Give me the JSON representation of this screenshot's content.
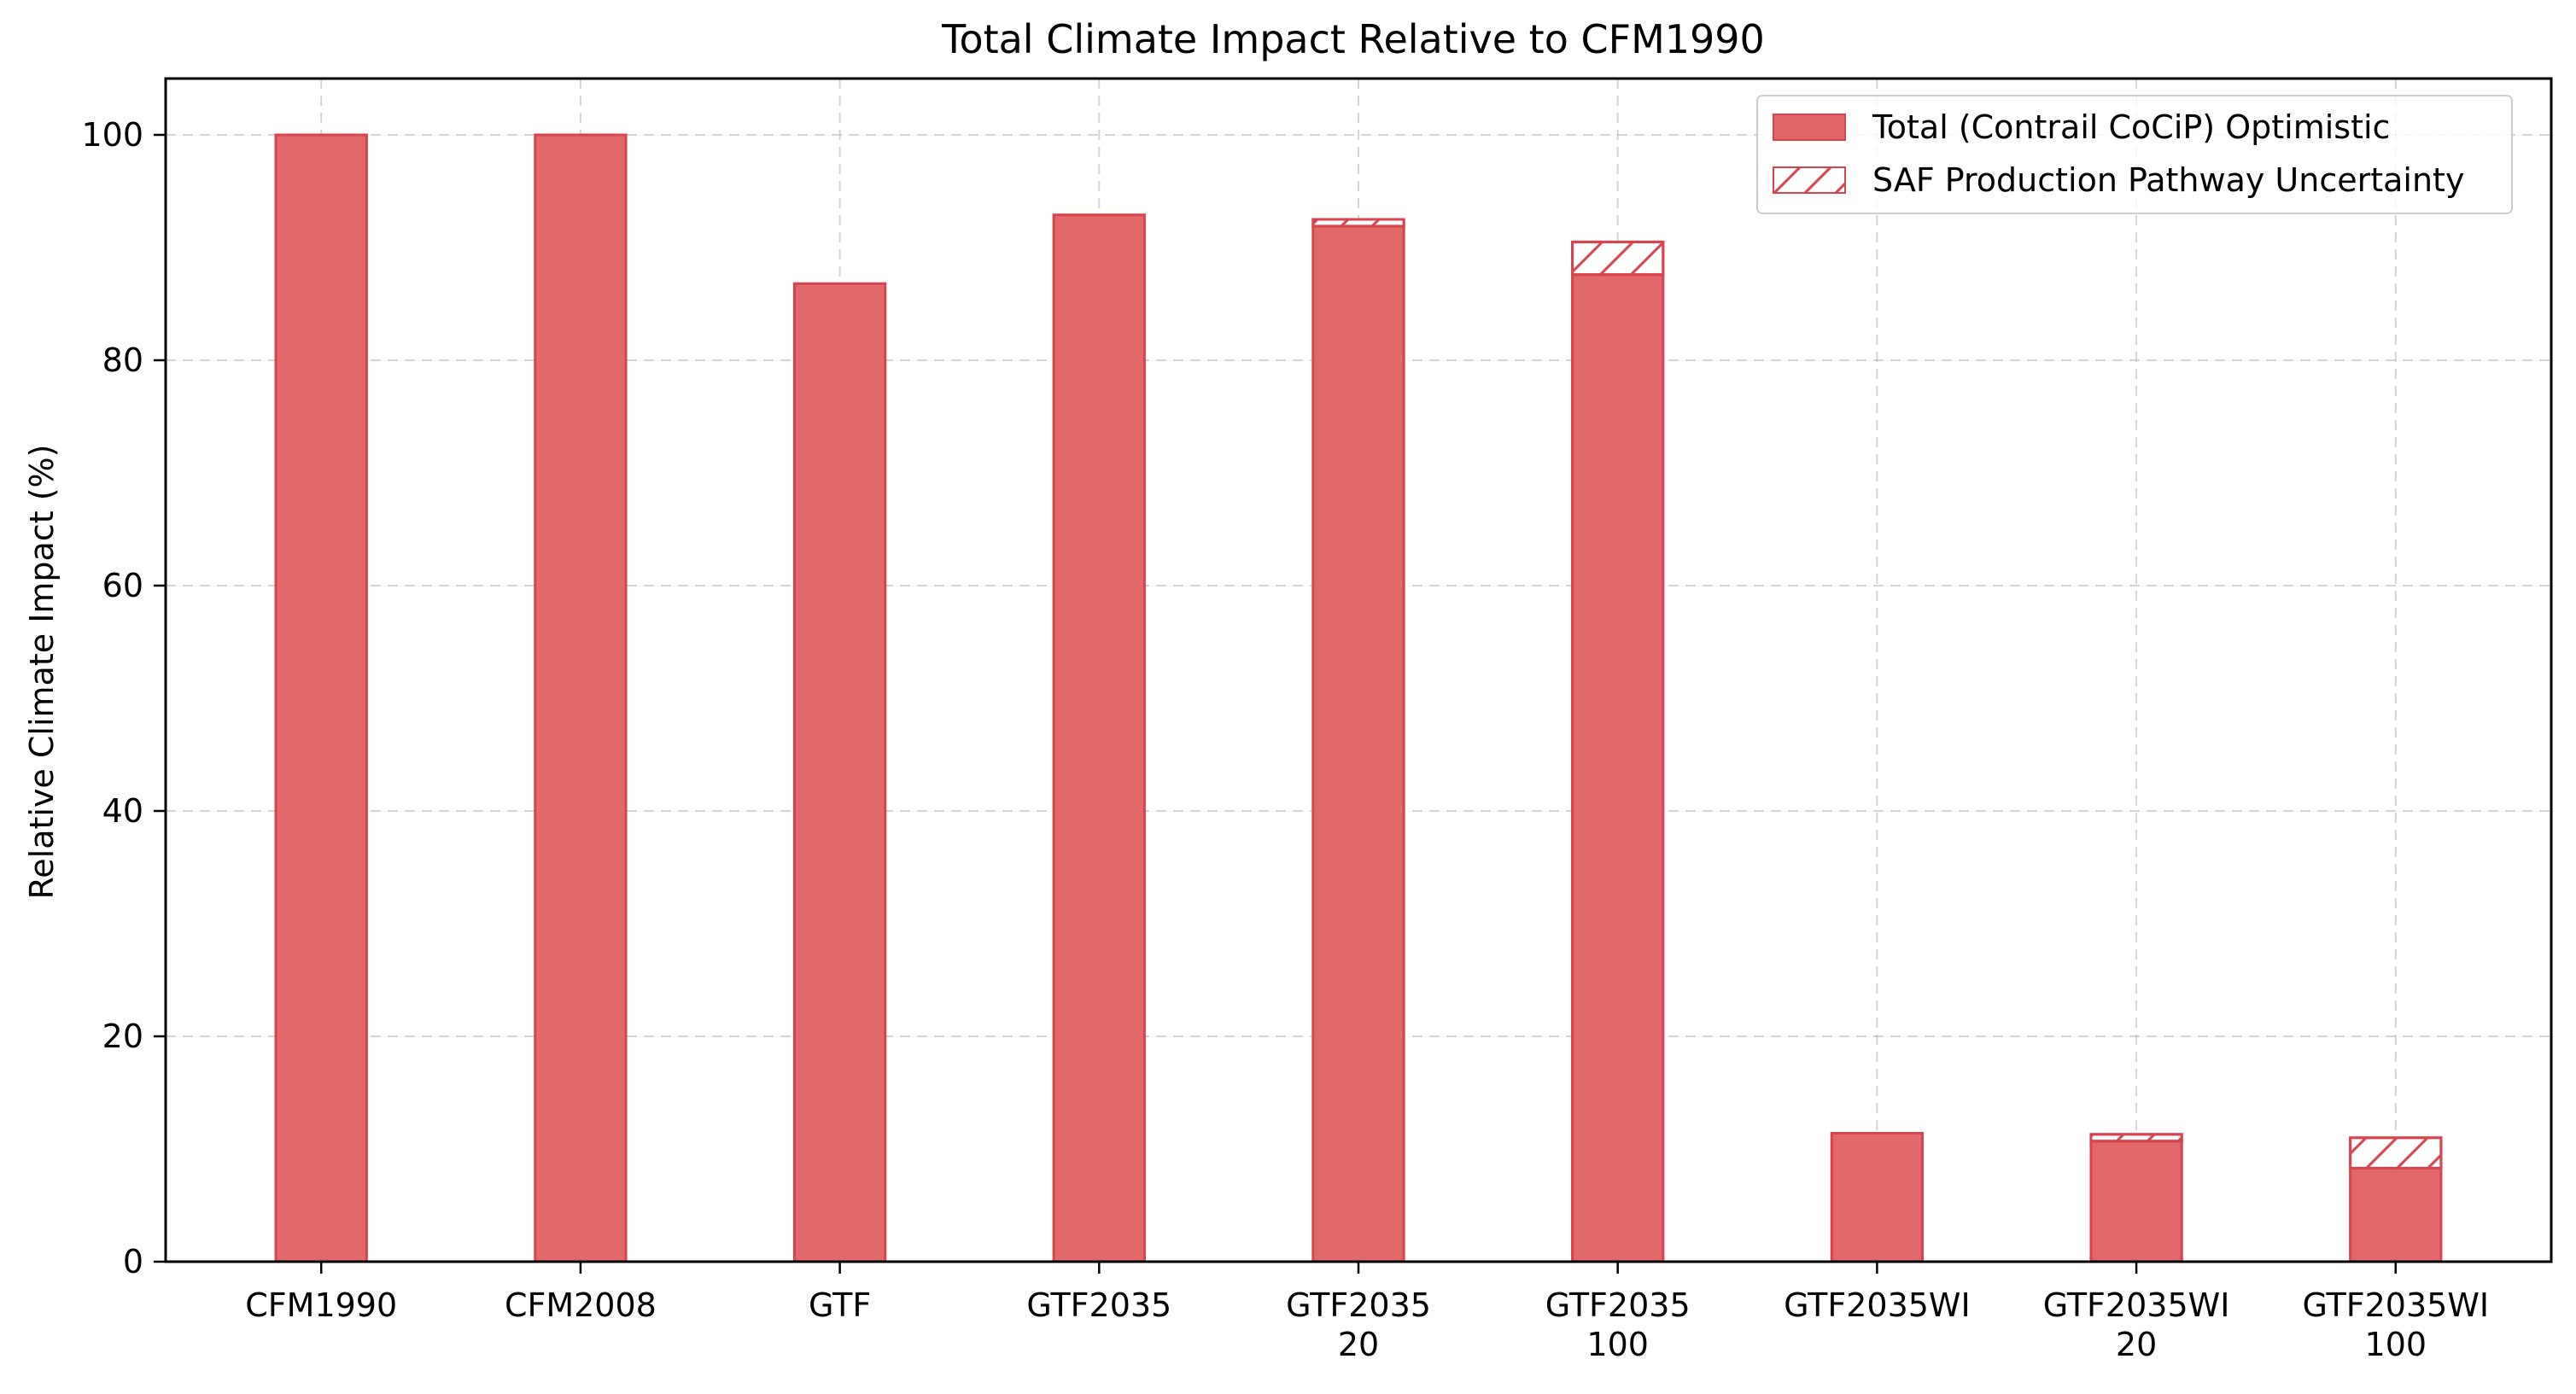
{
  "chart_data": {
    "type": "bar",
    "title": "Total Climate Impact Relative to CFM1990",
    "xlabel": "",
    "ylabel": "Relative Climate Impact (%)",
    "ylim": [
      0,
      105
    ],
    "yticks": [
      0,
      20,
      40,
      60,
      80,
      100
    ],
    "grid": true,
    "legend_position": "upper-right",
    "categories": [
      [
        "CFM1990"
      ],
      [
        "CFM2008"
      ],
      [
        "GTF"
      ],
      [
        "GTF2035"
      ],
      [
        "GTF2035",
        "20"
      ],
      [
        "GTF2035",
        "100"
      ],
      [
        "GTF2035WI"
      ],
      [
        "GTF2035WI",
        "20"
      ],
      [
        "GTF2035WI",
        "100"
      ]
    ],
    "series": [
      {
        "name": "Total (Contrail CoCiP) Optimistic",
        "values": [
          100,
          100,
          86.8,
          92.9,
          91.9,
          87.6,
          11.4,
          10.7,
          8.3
        ],
        "color": "#e06666",
        "edge": "#d9434d"
      },
      {
        "name": "SAF Production Pathway Uncertainty",
        "values": [
          0,
          0,
          0,
          0,
          0.6,
          2.9,
          0,
          0.6,
          2.7
        ],
        "fill": "#ffffff",
        "hatch": "diagonal",
        "edge": "#d9434d"
      }
    ]
  }
}
